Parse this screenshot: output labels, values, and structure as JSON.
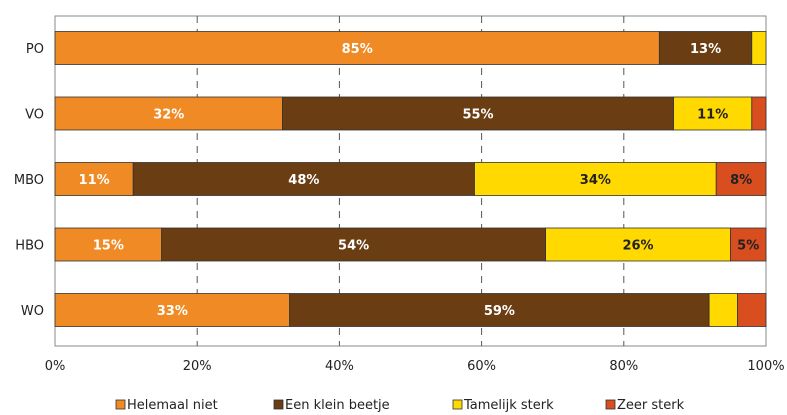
{
  "chart_data": {
    "type": "bar",
    "orientation": "horizontal",
    "stacked": true,
    "title": "",
    "xlabel": "",
    "ylabel": "",
    "xlim": [
      0,
      100
    ],
    "x_ticks": [
      "0%",
      "20%",
      "40%",
      "60%",
      "80%",
      "100%"
    ],
    "grid": "vertical dashed",
    "legend_position": "bottom",
    "categories": [
      "PO",
      "VO",
      "MBO",
      "HBO",
      "WO"
    ],
    "series": [
      {
        "name": "Helemaal niet",
        "color": "#F08A24",
        "label_color": "#ffffff",
        "values": [
          85,
          32,
          11,
          15,
          33
        ],
        "labels": [
          "85%",
          "32%",
          "11%",
          "15%",
          "33%"
        ]
      },
      {
        "name": "Een klein beetje",
        "color": "#6B3D12",
        "label_color": "#ffffff",
        "values": [
          13,
          55,
          48,
          54,
          59
        ],
        "labels": [
          "13%",
          "55%",
          "48%",
          "54%",
          "59%"
        ]
      },
      {
        "name": "Tamelijk sterk",
        "color": "#FFD900",
        "label_color": "#222222",
        "values": [
          2,
          11,
          34,
          26,
          4
        ],
        "labels": [
          "",
          "11%",
          "34%",
          "26%",
          ""
        ]
      },
      {
        "name": "Zeer sterk",
        "color": "#D94E1F",
        "label_color": "#222222",
        "values": [
          0,
          2,
          8,
          5,
          4
        ],
        "labels": [
          "",
          "",
          "8%",
          "5%",
          ""
        ]
      }
    ]
  }
}
